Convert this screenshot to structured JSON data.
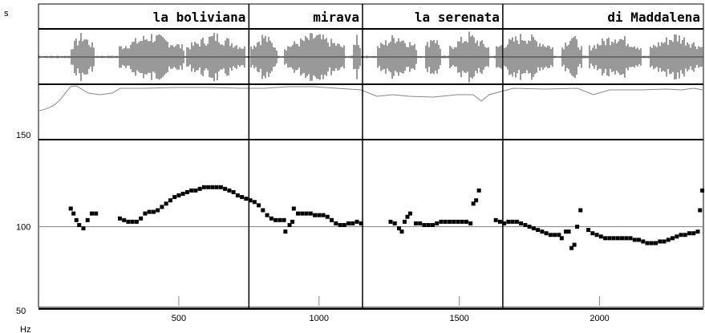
{
  "chart_data": {
    "type": "scatter",
    "panels": [
      "transcription",
      "waveform",
      "intensity",
      "pitch"
    ],
    "top_left_unit": "s",
    "y_unit": "Hz",
    "yticks": [
      {
        "value": 150,
        "label": "150"
      },
      {
        "value": 100,
        "label": "100"
      },
      {
        "value": 50,
        "label": "50"
      }
    ],
    "xticks": [
      {
        "value": 500,
        "label": "500"
      },
      {
        "value": 1000,
        "label": "1000"
      },
      {
        "value": 1500,
        "label": "1500"
      },
      {
        "value": 2000,
        "label": "2000"
      }
    ],
    "xlim": [
      0,
      2370
    ],
    "ylim": [
      50,
      150
    ],
    "reference_line": 100,
    "segments": [
      {
        "label": "la boliviana",
        "start": 0,
        "end": 750
      },
      {
        "label": "mirava",
        "start": 750,
        "end": 1155
      },
      {
        "label": "la serenata",
        "start": 1155,
        "end": 1655
      },
      {
        "label": "di Maddalena",
        "start": 1655,
        "end": 2370
      }
    ],
    "pitch_points": [
      [
        115,
        111
      ],
      [
        125,
        108
      ],
      [
        135,
        104
      ],
      [
        145,
        101
      ],
      [
        160,
        99
      ],
      [
        175,
        104
      ],
      [
        190,
        108
      ],
      [
        205,
        108
      ],
      [
        290,
        105
      ],
      [
        305,
        104
      ],
      [
        320,
        103
      ],
      [
        335,
        103
      ],
      [
        350,
        103
      ],
      [
        365,
        105
      ],
      [
        380,
        108
      ],
      [
        395,
        109
      ],
      [
        410,
        109
      ],
      [
        425,
        110
      ],
      [
        440,
        112
      ],
      [
        455,
        114
      ],
      [
        470,
        116
      ],
      [
        485,
        118
      ],
      [
        500,
        119
      ],
      [
        515,
        120
      ],
      [
        530,
        121
      ],
      [
        545,
        122
      ],
      [
        560,
        122
      ],
      [
        575,
        123
      ],
      [
        590,
        124
      ],
      [
        605,
        124
      ],
      [
        620,
        124
      ],
      [
        635,
        124
      ],
      [
        650,
        124
      ],
      [
        665,
        123
      ],
      [
        680,
        122
      ],
      [
        695,
        121
      ],
      [
        710,
        119
      ],
      [
        725,
        118
      ],
      [
        740,
        117
      ],
      [
        755,
        116
      ],
      [
        770,
        115
      ],
      [
        785,
        113
      ],
      [
        800,
        110
      ],
      [
        815,
        107
      ],
      [
        830,
        105
      ],
      [
        845,
        104
      ],
      [
        860,
        104
      ],
      [
        875,
        104
      ],
      [
        880,
        97
      ],
      [
        895,
        101
      ],
      [
        905,
        103
      ],
      [
        910,
        111
      ],
      [
        925,
        108
      ],
      [
        940,
        108
      ],
      [
        955,
        108
      ],
      [
        970,
        108
      ],
      [
        985,
        107
      ],
      [
        1000,
        107
      ],
      [
        1015,
        107
      ],
      [
        1030,
        106
      ],
      [
        1045,
        104
      ],
      [
        1060,
        102
      ],
      [
        1075,
        101
      ],
      [
        1090,
        101
      ],
      [
        1105,
        102
      ],
      [
        1120,
        102
      ],
      [
        1135,
        103
      ],
      [
        1150,
        102
      ],
      [
        1255,
        103
      ],
      [
        1270,
        102
      ],
      [
        1285,
        99
      ],
      [
        1295,
        97
      ],
      [
        1305,
        103
      ],
      [
        1315,
        106
      ],
      [
        1325,
        108
      ],
      [
        1345,
        102
      ],
      [
        1360,
        102
      ],
      [
        1375,
        101
      ],
      [
        1390,
        101
      ],
      [
        1405,
        101
      ],
      [
        1420,
        102
      ],
      [
        1435,
        103
      ],
      [
        1450,
        103
      ],
      [
        1465,
        103
      ],
      [
        1480,
        103
      ],
      [
        1495,
        103
      ],
      [
        1510,
        103
      ],
      [
        1525,
        103
      ],
      [
        1540,
        102
      ],
      [
        1550,
        114
      ],
      [
        1560,
        116
      ],
      [
        1570,
        122
      ],
      [
        1630,
        104
      ],
      [
        1645,
        103
      ],
      [
        1660,
        102
      ],
      [
        1675,
        103
      ],
      [
        1690,
        103
      ],
      [
        1705,
        103
      ],
      [
        1720,
        102
      ],
      [
        1735,
        101
      ],
      [
        1750,
        100
      ],
      [
        1765,
        99
      ],
      [
        1780,
        98
      ],
      [
        1795,
        97
      ],
      [
        1810,
        96
      ],
      [
        1825,
        95
      ],
      [
        1840,
        95
      ],
      [
        1855,
        95
      ],
      [
        1865,
        93
      ],
      [
        1880,
        97
      ],
      [
        1890,
        97
      ],
      [
        1900,
        87
      ],
      [
        1910,
        89
      ],
      [
        1920,
        100
      ],
      [
        1932,
        110
      ],
      [
        1960,
        98
      ],
      [
        1975,
        96
      ],
      [
        1990,
        95
      ],
      [
        2005,
        94
      ],
      [
        2020,
        93
      ],
      [
        2035,
        93
      ],
      [
        2050,
        93
      ],
      [
        2065,
        93
      ],
      [
        2080,
        93
      ],
      [
        2095,
        93
      ],
      [
        2110,
        93
      ],
      [
        2125,
        92
      ],
      [
        2140,
        92
      ],
      [
        2155,
        91
      ],
      [
        2170,
        90
      ],
      [
        2185,
        90
      ],
      [
        2200,
        90
      ],
      [
        2215,
        91
      ],
      [
        2230,
        91
      ],
      [
        2245,
        92
      ],
      [
        2260,
        93
      ],
      [
        2275,
        94
      ],
      [
        2290,
        95
      ],
      [
        2305,
        95
      ],
      [
        2320,
        96
      ],
      [
        2335,
        96
      ],
      [
        2350,
        97
      ],
      [
        2358,
        110
      ],
      [
        2366,
        122
      ]
    ]
  }
}
